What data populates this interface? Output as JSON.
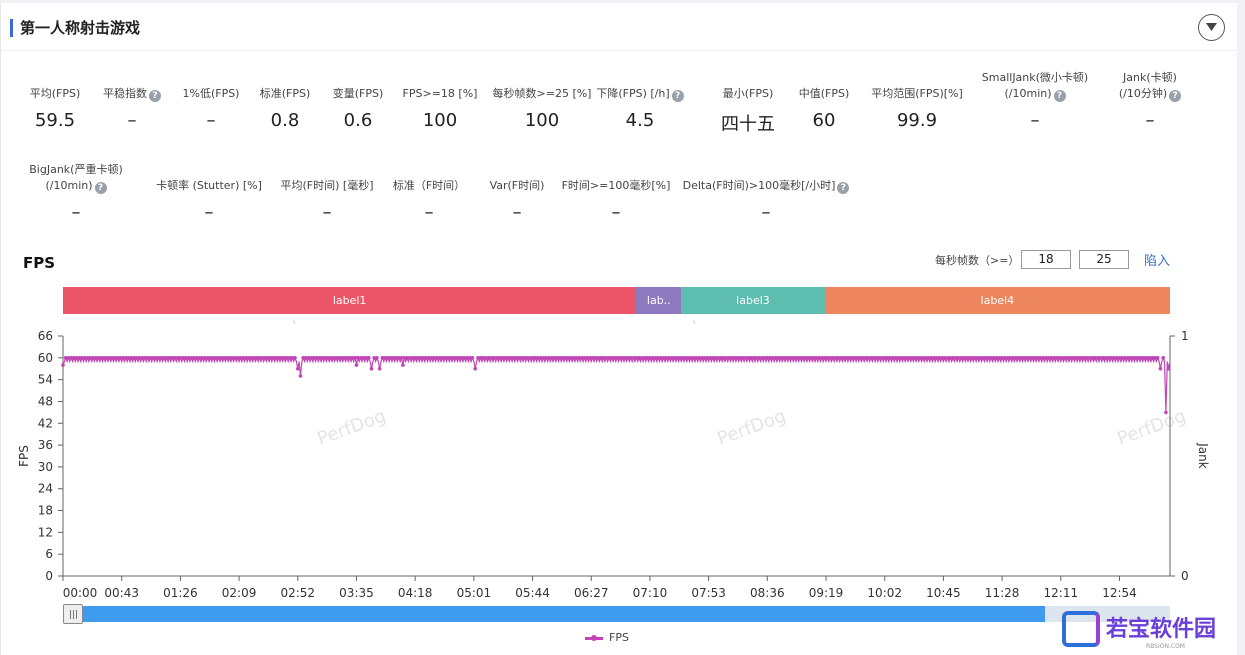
{
  "panel": {
    "title": "第一人称射击游戏"
  },
  "metrics_row1": [
    {
      "label": "平均(FPS)",
      "value": "59.5",
      "help": false
    },
    {
      "label": "平稳指数",
      "value": "–",
      "help": true
    },
    {
      "label": "1%低(FPS)",
      "value": "–",
      "help": false
    },
    {
      "label": "标准(FPS)",
      "value": "0.8",
      "help": false
    },
    {
      "label": "变量(FPS)",
      "value": "0.6",
      "help": false
    },
    {
      "label": "FPS>=18 [%]",
      "value": "100",
      "help": false
    },
    {
      "label": "每秒帧数>=25 [%]",
      "value": "100",
      "help": false
    },
    {
      "label": "下降(FPS) [/h]",
      "value": "4.5",
      "help": true
    },
    {
      "label": "最小(FPS)",
      "value": "四十五",
      "help": false
    },
    {
      "label": "中值(FPS)",
      "value": "60",
      "help": false
    },
    {
      "label": "平均范围(FPS)[%]",
      "value": "99.9",
      "help": false
    },
    {
      "label": "SmallJank(微小卡顿)",
      "label2": "(/10min)",
      "value": "–",
      "help": true
    },
    {
      "label": "Jank(卡顿)",
      "label2": "(/10分钟)",
      "value": "–",
      "help": true
    }
  ],
  "metrics_row2": [
    {
      "label": "BigJank(严重卡顿)",
      "label2": "(/10min)",
      "value": "–",
      "help": true
    },
    {
      "label": "卡顿率 (Stutter) [%]",
      "value": "–",
      "help": false
    },
    {
      "label": "平均(F时间) [毫秒]",
      "value": "–",
      "help": false
    },
    {
      "label": "标准（F时间）",
      "value": "–",
      "help": false
    },
    {
      "label": "Var(F时间)",
      "value": "–",
      "help": false
    },
    {
      "label": "F时间>=100毫秒[%]",
      "value": "–",
      "help": false
    },
    {
      "label": "Delta(F时间)>100毫秒[/小时]",
      "value": "–",
      "help": true
    }
  ],
  "fps_section": {
    "title": "FPS",
    "threshold_label": "每秒帧数（>=）",
    "threshold_1": "18",
    "threshold_2": "25",
    "apply_label": "陷入"
  },
  "labels": [
    {
      "name": "label1",
      "color": "#ec5468"
    },
    {
      "name": "lab..",
      "color": "#8d79bd"
    },
    {
      "name": "label3",
      "color": "#5dbdae"
    },
    {
      "name": "label4",
      "color": "#ed855e"
    }
  ],
  "chart_data": {
    "type": "line",
    "title": "FPS",
    "ylabel": "FPS",
    "y2label": "Jank",
    "ylim": [
      0,
      66
    ],
    "y2lim": [
      0,
      1
    ],
    "yticks": [
      0,
      6,
      12,
      18,
      24,
      30,
      36,
      42,
      48,
      54,
      60,
      66
    ],
    "y2ticks": [
      0,
      1
    ],
    "xlabel": "",
    "xticks": [
      "00:00",
      "00:43",
      "01:26",
      "02:09",
      "02:52",
      "03:35",
      "04:18",
      "05:01",
      "05:44",
      "06:27",
      "07:10",
      "07:53",
      "08:36",
      "09:19",
      "10:02",
      "10:45",
      "11:28",
      "12:11",
      "12:54"
    ],
    "x_range_seconds": [
      0,
      811
    ],
    "label_segments": [
      {
        "name": "label1",
        "start_s": 0,
        "end_s": 420
      },
      {
        "name": "lab..",
        "start_s": 420,
        "end_s": 453
      },
      {
        "name": "label3",
        "start_s": 453,
        "end_s": 558
      },
      {
        "name": "label4",
        "start_s": 558,
        "end_s": 811
      }
    ],
    "series": [
      {
        "name": "FPS",
        "color": "#c245b7",
        "baseline": 59.5,
        "dips": [
          {
            "t": 0,
            "v": 58
          },
          {
            "t": 172,
            "v": 57
          },
          {
            "t": 174,
            "v": 55
          },
          {
            "t": 215,
            "v": 58
          },
          {
            "t": 226,
            "v": 57
          },
          {
            "t": 232,
            "v": 57
          },
          {
            "t": 249,
            "v": 58
          },
          {
            "t": 302,
            "v": 57
          },
          {
            "t": 804,
            "v": 57
          },
          {
            "t": 808,
            "v": 45
          },
          {
            "t": 810,
            "v": 57
          }
        ]
      }
    ],
    "legend": [
      "FPS"
    ],
    "legend_position": "bottom-center",
    "grid": false,
    "watermark": "PerfDog"
  },
  "brand": {
    "name": "若宝软件园",
    "sub": "RBSION.COM"
  },
  "icons": {
    "collapse": "chevron-down-icon",
    "help": "question-circle-icon"
  }
}
